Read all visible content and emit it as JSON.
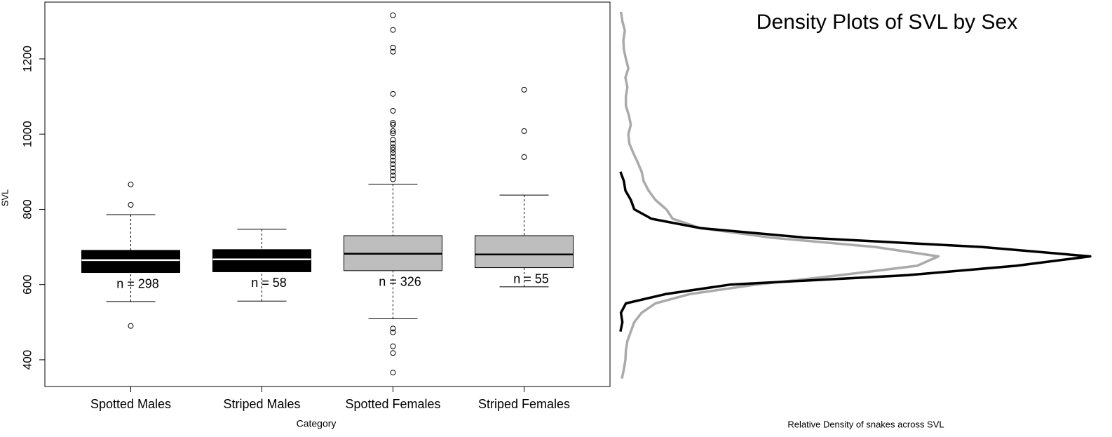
{
  "chart_data": [
    {
      "type": "box",
      "x_label": "Category",
      "y_label": "SVL",
      "categories": [
        "Spotted Males",
        "Striped Males",
        "Spotted Females",
        "Striped Females"
      ],
      "boxes": [
        {
          "min": 555,
          "q1": 632,
          "median": 665,
          "q3": 691,
          "max": 786,
          "outliers": [
            866,
            812,
            490
          ],
          "color": "#000000",
          "median_color": "#ffffff"
        },
        {
          "min": 556,
          "q1": 634,
          "median": 667,
          "q3": 693,
          "max": 747,
          "outliers": [],
          "color": "#000000",
          "median_color": "#ffffff"
        },
        {
          "min": 509,
          "q1": 637,
          "median": 682,
          "q3": 730,
          "max": 867,
          "outliers": [
            1316,
            1277,
            1230,
            1219,
            1107,
            1062,
            1030,
            1025,
            1008,
            1002,
            985,
            975,
            965,
            958,
            950,
            940,
            930,
            920,
            910,
            900,
            890,
            880,
            483,
            473,
            436,
            418,
            366
          ],
          "color": "#bebebe",
          "median_color": "#000000"
        },
        {
          "min": 594,
          "q1": 645,
          "median": 680,
          "q3": 730,
          "max": 838,
          "outliers": [
            1118,
            1008,
            939
          ],
          "color": "#bebebe",
          "median_color": "#000000"
        }
      ],
      "n_labels": [
        "n = 298",
        "n = 58",
        "n = 326",
        "n = 55"
      ],
      "ylim": [
        329,
        1351
      ],
      "yticks": [
        400,
        600,
        800,
        1000,
        1200
      ]
    },
    {
      "type": "line",
      "orientation": "horizontal",
      "title": "Density Plots of SVL by Sex",
      "x_label": "Relative Density of snakes across SVL",
      "x": [
        350,
        375,
        400,
        425,
        450,
        475,
        500,
        525,
        550,
        575,
        600,
        625,
        650,
        675,
        700,
        725,
        750,
        775,
        800,
        825,
        850,
        875,
        900,
        925,
        950,
        975,
        1000,
        1025,
        1050,
        1075,
        1100,
        1125,
        1150,
        1175,
        1200,
        1225,
        1250,
        1275,
        1300,
        1325
      ],
      "xlim": [
        329,
        1351
      ],
      "ylim": [
        0,
        1
      ],
      "series": [
        {
          "color": "#aaaaaa",
          "values": [
            0.01,
            0.014,
            0.017,
            0.018,
            0.021,
            0.028,
            0.035,
            0.05,
            0.078,
            0.149,
            0.283,
            0.453,
            0.609,
            0.652,
            0.524,
            0.312,
            0.17,
            0.113,
            0.1,
            0.078,
            0.064,
            0.054,
            0.05,
            0.042,
            0.033,
            0.025,
            0.023,
            0.028,
            0.024,
            0.018,
            0.018,
            0.021,
            0.017,
            0.023,
            0.018,
            0.014,
            0.013,
            0.016,
            0.011,
            0.008
          ]
        },
        {
          "color": "#000000",
          "values": [
            null,
            null,
            null,
            null,
            null,
            0.007,
            0.011,
            0.008,
            0.018,
            0.1,
            0.23,
            0.59,
            0.81,
            0.96,
            0.74,
            0.38,
            0.17,
            0.07,
            0.035,
            0.028,
            0.017,
            0.014,
            0.007,
            null,
            null,
            null,
            null,
            null,
            null,
            null,
            null,
            null,
            null,
            null,
            null,
            null,
            null,
            null,
            null,
            null
          ]
        }
      ]
    }
  ]
}
